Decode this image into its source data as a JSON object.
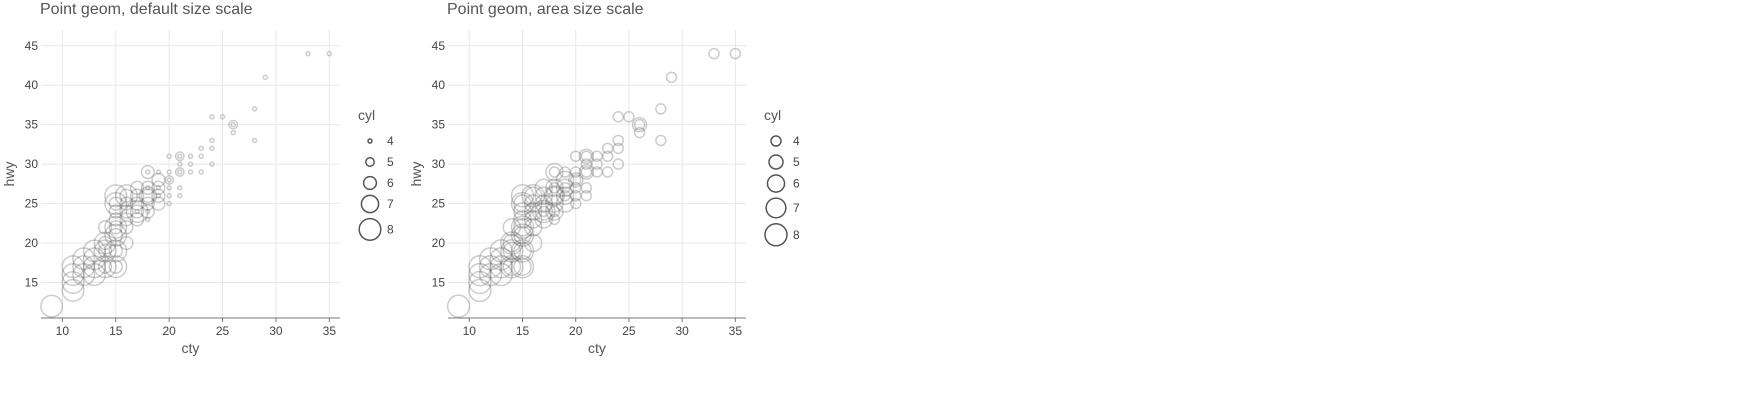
{
  "chart_data": [
    {
      "type": "scatter",
      "title": "Point geom, default size scale",
      "xlabel": "cty",
      "ylabel": "hwy",
      "xlim": [
        8,
        36
      ],
      "ylim": [
        10.5,
        47
      ],
      "x_ticks": [
        "10",
        "15",
        "20",
        "25",
        "30",
        "35"
      ],
      "y_ticks": [
        "15",
        "20",
        "25",
        "30",
        "35",
        "40",
        "45"
      ],
      "size_scale": "default",
      "grid": true,
      "legend": {
        "title": "cyl",
        "position": "right",
        "items": [
          "4",
          "5",
          "6",
          "7",
          "8"
        ]
      },
      "point_stroke": "#555555",
      "points": [
        {
          "x": 33,
          "y": 44,
          "cyl": 4
        },
        {
          "x": 35,
          "y": 44,
          "cyl": 4
        },
        {
          "x": 29,
          "y": 41,
          "cyl": 4
        },
        {
          "x": 28,
          "y": 37,
          "cyl": 4
        },
        {
          "x": 28,
          "y": 33,
          "cyl": 4
        },
        {
          "x": 26,
          "y": 35,
          "cyl": 4
        },
        {
          "x": 26,
          "y": 34,
          "cyl": 4
        },
        {
          "x": 25,
          "y": 36,
          "cyl": 4
        },
        {
          "x": 24,
          "y": 36,
          "cyl": 4
        },
        {
          "x": 24,
          "y": 33,
          "cyl": 4
        },
        {
          "x": 24,
          "y": 32,
          "cyl": 4
        },
        {
          "x": 24,
          "y": 30,
          "cyl": 4
        },
        {
          "x": 23,
          "y": 32,
          "cyl": 4
        },
        {
          "x": 23,
          "y": 31,
          "cyl": 4
        },
        {
          "x": 23,
          "y": 29,
          "cyl": 4
        },
        {
          "x": 22,
          "y": 31,
          "cyl": 4
        },
        {
          "x": 22,
          "y": 30,
          "cyl": 4
        },
        {
          "x": 22,
          "y": 29,
          "cyl": 4
        },
        {
          "x": 21,
          "y": 31,
          "cyl": 4
        },
        {
          "x": 21,
          "y": 30,
          "cyl": 4
        },
        {
          "x": 21,
          "y": 29,
          "cyl": 4
        },
        {
          "x": 21,
          "y": 27,
          "cyl": 4
        },
        {
          "x": 21,
          "y": 26,
          "cyl": 4
        },
        {
          "x": 20,
          "y": 31,
          "cyl": 4
        },
        {
          "x": 20,
          "y": 29,
          "cyl": 4
        },
        {
          "x": 20,
          "y": 28,
          "cyl": 4
        },
        {
          "x": 20,
          "y": 27,
          "cyl": 4
        },
        {
          "x": 20,
          "y": 26,
          "cyl": 4
        },
        {
          "x": 20,
          "y": 25,
          "cyl": 4
        },
        {
          "x": 19,
          "y": 29,
          "cyl": 4
        },
        {
          "x": 19,
          "y": 27,
          "cyl": 4
        },
        {
          "x": 19,
          "y": 26,
          "cyl": 4
        },
        {
          "x": 18,
          "y": 29,
          "cyl": 4
        },
        {
          "x": 18,
          "y": 27,
          "cyl": 4
        },
        {
          "x": 18,
          "y": 24,
          "cyl": 4
        },
        {
          "x": 18,
          "y": 23,
          "cyl": 4
        },
        {
          "x": 17,
          "y": 24,
          "cyl": 4
        },
        {
          "x": 26,
          "y": 35,
          "cyl": 5
        },
        {
          "x": 21,
          "y": 31,
          "cyl": 5
        },
        {
          "x": 21,
          "y": 29,
          "cyl": 5
        },
        {
          "x": 20,
          "y": 28,
          "cyl": 5
        },
        {
          "x": 18,
          "y": 29,
          "cyl": 6
        },
        {
          "x": 19,
          "y": 28,
          "cyl": 6
        },
        {
          "x": 19,
          "y": 27,
          "cyl": 6
        },
        {
          "x": 19,
          "y": 26,
          "cyl": 6
        },
        {
          "x": 19,
          "y": 25,
          "cyl": 6
        },
        {
          "x": 18,
          "y": 27,
          "cyl": 6
        },
        {
          "x": 18,
          "y": 26,
          "cyl": 6
        },
        {
          "x": 18,
          "y": 25,
          "cyl": 6
        },
        {
          "x": 18,
          "y": 24,
          "cyl": 6
        },
        {
          "x": 17,
          "y": 27,
          "cyl": 6
        },
        {
          "x": 17,
          "y": 26,
          "cyl": 6
        },
        {
          "x": 17,
          "y": 25,
          "cyl": 6
        },
        {
          "x": 17,
          "y": 24,
          "cyl": 6
        },
        {
          "x": 17,
          "y": 23,
          "cyl": 6
        },
        {
          "x": 16,
          "y": 26,
          "cyl": 6
        },
        {
          "x": 16,
          "y": 25,
          "cyl": 6
        },
        {
          "x": 16,
          "y": 24,
          "cyl": 6
        },
        {
          "x": 16,
          "y": 23,
          "cyl": 6
        },
        {
          "x": 16,
          "y": 22,
          "cyl": 6
        },
        {
          "x": 16,
          "y": 20,
          "cyl": 6
        },
        {
          "x": 15,
          "y": 25,
          "cyl": 6
        },
        {
          "x": 15,
          "y": 24,
          "cyl": 6
        },
        {
          "x": 15,
          "y": 23,
          "cyl": 6
        },
        {
          "x": 15,
          "y": 22,
          "cyl": 6
        },
        {
          "x": 15,
          "y": 21,
          "cyl": 6
        },
        {
          "x": 15,
          "y": 19,
          "cyl": 6
        },
        {
          "x": 15,
          "y": 17,
          "cyl": 6
        },
        {
          "x": 14,
          "y": 22,
          "cyl": 6
        },
        {
          "x": 14,
          "y": 20,
          "cyl": 6
        },
        {
          "x": 14,
          "y": 19,
          "cyl": 6
        },
        {
          "x": 14,
          "y": 17,
          "cyl": 6
        },
        {
          "x": 18,
          "y": 26,
          "cyl": 7
        },
        {
          "x": 17,
          "y": 24,
          "cyl": 8
        },
        {
          "x": 16,
          "y": 26,
          "cyl": 8
        },
        {
          "x": 15,
          "y": 26,
          "cyl": 8
        },
        {
          "x": 15,
          "y": 25,
          "cyl": 8
        },
        {
          "x": 15,
          "y": 22,
          "cyl": 8
        },
        {
          "x": 15,
          "y": 21,
          "cyl": 8
        },
        {
          "x": 15,
          "y": 19,
          "cyl": 8
        },
        {
          "x": 15,
          "y": 17,
          "cyl": 8
        },
        {
          "x": 14,
          "y": 20,
          "cyl": 8
        },
        {
          "x": 14,
          "y": 19,
          "cyl": 8
        },
        {
          "x": 14,
          "y": 17,
          "cyl": 8
        },
        {
          "x": 13,
          "y": 19,
          "cyl": 8
        },
        {
          "x": 13,
          "y": 18,
          "cyl": 8
        },
        {
          "x": 13,
          "y": 17,
          "cyl": 8
        },
        {
          "x": 13,
          "y": 16,
          "cyl": 8
        },
        {
          "x": 12,
          "y": 18,
          "cyl": 8
        },
        {
          "x": 12,
          "y": 17,
          "cyl": 8
        },
        {
          "x": 12,
          "y": 16,
          "cyl": 8
        },
        {
          "x": 11,
          "y": 17,
          "cyl": 8
        },
        {
          "x": 11,
          "y": 16,
          "cyl": 8
        },
        {
          "x": 11,
          "y": 15,
          "cyl": 8
        },
        {
          "x": 11,
          "y": 14,
          "cyl": 8
        },
        {
          "x": 9,
          "y": 12,
          "cyl": 8
        }
      ]
    },
    {
      "type": "scatter",
      "title": "Point geom, area size scale",
      "xlabel": "cty",
      "ylabel": "hwy",
      "xlim": [
        8,
        36
      ],
      "ylim": [
        10.5,
        47
      ],
      "x_ticks": [
        "10",
        "15",
        "20",
        "25",
        "30",
        "35"
      ],
      "y_ticks": [
        "15",
        "20",
        "25",
        "30",
        "35",
        "40",
        "45"
      ],
      "size_scale": "area",
      "grid": true,
      "legend": {
        "title": "cyl",
        "position": "right",
        "items": [
          "4",
          "5",
          "6",
          "7",
          "8"
        ]
      },
      "point_stroke": "#555555",
      "points": [
        {
          "x": 33,
          "y": 44,
          "cyl": 4
        },
        {
          "x": 35,
          "y": 44,
          "cyl": 4
        },
        {
          "x": 29,
          "y": 41,
          "cyl": 4
        },
        {
          "x": 28,
          "y": 37,
          "cyl": 4
        },
        {
          "x": 28,
          "y": 33,
          "cyl": 4
        },
        {
          "x": 26,
          "y": 35,
          "cyl": 4
        },
        {
          "x": 26,
          "y": 34,
          "cyl": 4
        },
        {
          "x": 25,
          "y": 36,
          "cyl": 4
        },
        {
          "x": 24,
          "y": 36,
          "cyl": 4
        },
        {
          "x": 24,
          "y": 33,
          "cyl": 4
        },
        {
          "x": 24,
          "y": 32,
          "cyl": 4
        },
        {
          "x": 24,
          "y": 30,
          "cyl": 4
        },
        {
          "x": 23,
          "y": 32,
          "cyl": 4
        },
        {
          "x": 23,
          "y": 31,
          "cyl": 4
        },
        {
          "x": 23,
          "y": 29,
          "cyl": 4
        },
        {
          "x": 22,
          "y": 31,
          "cyl": 4
        },
        {
          "x": 22,
          "y": 30,
          "cyl": 4
        },
        {
          "x": 22,
          "y": 29,
          "cyl": 4
        },
        {
          "x": 21,
          "y": 31,
          "cyl": 4
        },
        {
          "x": 21,
          "y": 30,
          "cyl": 4
        },
        {
          "x": 21,
          "y": 29,
          "cyl": 4
        },
        {
          "x": 21,
          "y": 27,
          "cyl": 4
        },
        {
          "x": 21,
          "y": 26,
          "cyl": 4
        },
        {
          "x": 20,
          "y": 31,
          "cyl": 4
        },
        {
          "x": 20,
          "y": 29,
          "cyl": 4
        },
        {
          "x": 20,
          "y": 28,
          "cyl": 4
        },
        {
          "x": 20,
          "y": 27,
          "cyl": 4
        },
        {
          "x": 20,
          "y": 26,
          "cyl": 4
        },
        {
          "x": 20,
          "y": 25,
          "cyl": 4
        },
        {
          "x": 19,
          "y": 29,
          "cyl": 4
        },
        {
          "x": 19,
          "y": 27,
          "cyl": 4
        },
        {
          "x": 19,
          "y": 26,
          "cyl": 4
        },
        {
          "x": 18,
          "y": 29,
          "cyl": 4
        },
        {
          "x": 18,
          "y": 27,
          "cyl": 4
        },
        {
          "x": 18,
          "y": 24,
          "cyl": 4
        },
        {
          "x": 18,
          "y": 23,
          "cyl": 4
        },
        {
          "x": 17,
          "y": 24,
          "cyl": 4
        },
        {
          "x": 26,
          "y": 35,
          "cyl": 5
        },
        {
          "x": 21,
          "y": 31,
          "cyl": 5
        },
        {
          "x": 21,
          "y": 29,
          "cyl": 5
        },
        {
          "x": 20,
          "y": 28,
          "cyl": 5
        },
        {
          "x": 18,
          "y": 29,
          "cyl": 6
        },
        {
          "x": 19,
          "y": 28,
          "cyl": 6
        },
        {
          "x": 19,
          "y": 27,
          "cyl": 6
        },
        {
          "x": 19,
          "y": 26,
          "cyl": 6
        },
        {
          "x": 19,
          "y": 25,
          "cyl": 6
        },
        {
          "x": 18,
          "y": 27,
          "cyl": 6
        },
        {
          "x": 18,
          "y": 26,
          "cyl": 6
        },
        {
          "x": 18,
          "y": 25,
          "cyl": 6
        },
        {
          "x": 18,
          "y": 24,
          "cyl": 6
        },
        {
          "x": 17,
          "y": 27,
          "cyl": 6
        },
        {
          "x": 17,
          "y": 26,
          "cyl": 6
        },
        {
          "x": 17,
          "y": 25,
          "cyl": 6
        },
        {
          "x": 17,
          "y": 24,
          "cyl": 6
        },
        {
          "x": 17,
          "y": 23,
          "cyl": 6
        },
        {
          "x": 16,
          "y": 26,
          "cyl": 6
        },
        {
          "x": 16,
          "y": 25,
          "cyl": 6
        },
        {
          "x": 16,
          "y": 24,
          "cyl": 6
        },
        {
          "x": 16,
          "y": 23,
          "cyl": 6
        },
        {
          "x": 16,
          "y": 22,
          "cyl": 6
        },
        {
          "x": 16,
          "y": 20,
          "cyl": 6
        },
        {
          "x": 15,
          "y": 25,
          "cyl": 6
        },
        {
          "x": 15,
          "y": 24,
          "cyl": 6
        },
        {
          "x": 15,
          "y": 23,
          "cyl": 6
        },
        {
          "x": 15,
          "y": 22,
          "cyl": 6
        },
        {
          "x": 15,
          "y": 21,
          "cyl": 6
        },
        {
          "x": 15,
          "y": 19,
          "cyl": 6
        },
        {
          "x": 15,
          "y": 17,
          "cyl": 6
        },
        {
          "x": 14,
          "y": 22,
          "cyl": 6
        },
        {
          "x": 14,
          "y": 20,
          "cyl": 6
        },
        {
          "x": 14,
          "y": 19,
          "cyl": 6
        },
        {
          "x": 14,
          "y": 17,
          "cyl": 6
        },
        {
          "x": 18,
          "y": 26,
          "cyl": 7
        },
        {
          "x": 17,
          "y": 24,
          "cyl": 8
        },
        {
          "x": 16,
          "y": 26,
          "cyl": 8
        },
        {
          "x": 15,
          "y": 26,
          "cyl": 8
        },
        {
          "x": 15,
          "y": 25,
          "cyl": 8
        },
        {
          "x": 15,
          "y": 22,
          "cyl": 8
        },
        {
          "x": 15,
          "y": 21,
          "cyl": 8
        },
        {
          "x": 15,
          "y": 19,
          "cyl": 8
        },
        {
          "x": 15,
          "y": 17,
          "cyl": 8
        },
        {
          "x": 14,
          "y": 20,
          "cyl": 8
        },
        {
          "x": 14,
          "y": 19,
          "cyl": 8
        },
        {
          "x": 14,
          "y": 17,
          "cyl": 8
        },
        {
          "x": 13,
          "y": 19,
          "cyl": 8
        },
        {
          "x": 13,
          "y": 18,
          "cyl": 8
        },
        {
          "x": 13,
          "y": 17,
          "cyl": 8
        },
        {
          "x": 13,
          "y": 16,
          "cyl": 8
        },
        {
          "x": 12,
          "y": 18,
          "cyl": 8
        },
        {
          "x": 12,
          "y": 17,
          "cyl": 8
        },
        {
          "x": 12,
          "y": 16,
          "cyl": 8
        },
        {
          "x": 11,
          "y": 17,
          "cyl": 8
        },
        {
          "x": 11,
          "y": 16,
          "cyl": 8
        },
        {
          "x": 11,
          "y": 15,
          "cyl": 8
        },
        {
          "x": 11,
          "y": 14,
          "cyl": 8
        },
        {
          "x": 9,
          "y": 12,
          "cyl": 8
        }
      ]
    }
  ]
}
